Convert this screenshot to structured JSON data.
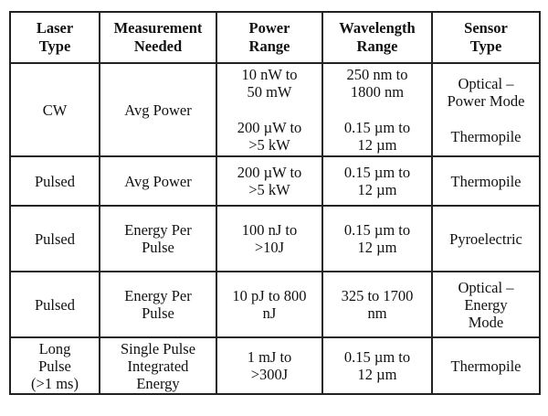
{
  "headers": [
    "Laser Type",
    "Measurement Needed",
    "Power Range",
    "Wavelength Range",
    "Sensor Type"
  ],
  "header_lines": [
    [
      "Laser",
      "Type"
    ],
    [
      "Measurement",
      "Needed"
    ],
    [
      "Power",
      "Range"
    ],
    [
      "Wavelength",
      "Range"
    ],
    [
      "Sensor",
      "Type"
    ]
  ],
  "rows": [
    {
      "laser_type": [
        "CW"
      ],
      "measurement": [
        "Avg Power"
      ],
      "power_a": [
        "10 nW to",
        "50 mW"
      ],
      "power_b": [
        "200 µW to",
        ">5 kW"
      ],
      "wavelength_a": [
        "250 nm to",
        "1800 nm"
      ],
      "wavelength_b": [
        "0.15 µm to",
        "12 µm"
      ],
      "sensor_a": [
        "Optical –",
        "Power Mode"
      ],
      "sensor_b": [
        "Thermopile"
      ]
    },
    {
      "laser_type": [
        "Pulsed"
      ],
      "measurement": [
        "Avg Power"
      ],
      "power": [
        "200 µW to",
        ">5 kW"
      ],
      "wavelength": [
        "0.15 µm to",
        "12 µm"
      ],
      "sensor": [
        "Thermopile"
      ]
    },
    {
      "laser_type": [
        "Pulsed"
      ],
      "measurement": [
        "Energy Per",
        "Pulse"
      ],
      "power": [
        "100 nJ to",
        ">10J"
      ],
      "wavelength": [
        "0.15 µm to",
        "12 µm"
      ],
      "sensor": [
        "Pyroelectric"
      ]
    },
    {
      "laser_type": [
        "Pulsed"
      ],
      "measurement": [
        "Energy Per",
        "Pulse"
      ],
      "power": [
        "10 pJ to 800",
        "nJ"
      ],
      "wavelength": [
        "325 to 1700",
        "nm"
      ],
      "sensor": [
        "Optical –",
        "Energy",
        "Mode"
      ]
    },
    {
      "laser_type": [
        "Long",
        "Pulse",
        "(>1 ms)"
      ],
      "measurement": [
        "Single Pulse",
        "Integrated",
        "Energy"
      ],
      "power": [
        "1 mJ to",
        ">300J"
      ],
      "wavelength": [
        "0.15 µm to",
        "12 µm"
      ],
      "sensor": [
        "Thermopile"
      ]
    }
  ]
}
